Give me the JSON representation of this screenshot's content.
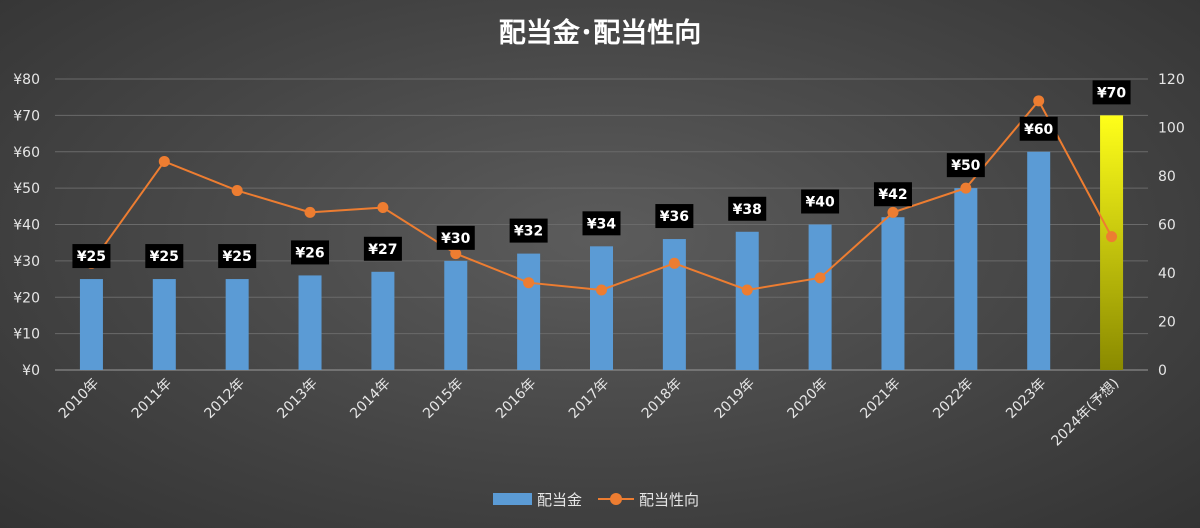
{
  "chart_data": {
    "type": "bar+line",
    "title": "配当金･配当性向",
    "categories": [
      "2010年",
      "2011年",
      "2012年",
      "2013年",
      "2014年",
      "2015年",
      "2016年",
      "2017年",
      "2018年",
      "2019年",
      "2020年",
      "2021年",
      "2022年",
      "2023年",
      "2024年(予想)"
    ],
    "series": [
      {
        "name": "配当金",
        "type": "bar",
        "axis": "left",
        "values": [
          25,
          25,
          25,
          26,
          27,
          30,
          32,
          34,
          36,
          38,
          40,
          42,
          50,
          60,
          70
        ],
        "labels": [
          "¥25",
          "¥25",
          "¥25",
          "¥26",
          "¥27",
          "¥30",
          "¥32",
          "¥34",
          "¥36",
          "¥38",
          "¥40",
          "¥42",
          "¥50",
          "¥60",
          "¥70"
        ],
        "color": "#5b9bd5",
        "forecast_gradient": [
          "#ffff1a",
          "#8a8a00"
        ]
      },
      {
        "name": "配当性向",
        "type": "line",
        "axis": "right",
        "values": [
          44,
          86,
          74,
          65,
          67,
          48,
          36,
          33,
          44,
          33,
          38,
          65,
          75,
          111,
          55
        ],
        "color": "#ed7d31"
      }
    ],
    "y_left": {
      "min": 0,
      "max": 80,
      "step": 10,
      "tick_labels": [
        "¥0",
        "¥10",
        "¥20",
        "¥30",
        "¥40",
        "¥50",
        "¥60",
        "¥70",
        "¥80"
      ]
    },
    "y_right": {
      "min": 0,
      "max": 120,
      "step": 20,
      "tick_labels": [
        "0",
        "20",
        "40",
        "60",
        "80",
        "100",
        "120"
      ]
    },
    "grid": true,
    "legend_position": "bottom"
  }
}
